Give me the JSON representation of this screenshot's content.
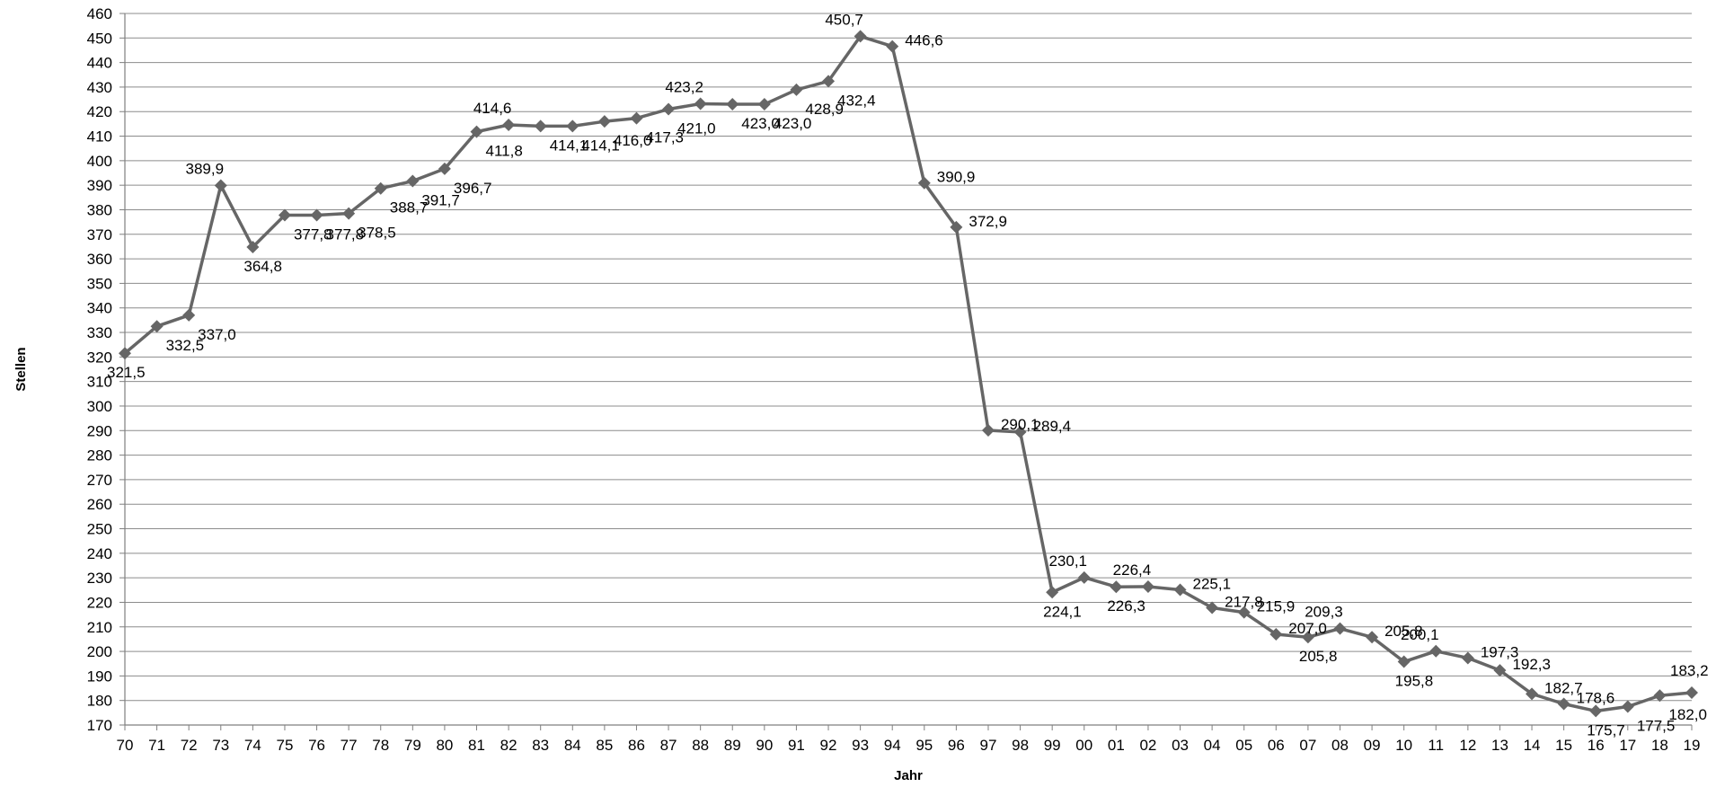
{
  "chart_data": {
    "type": "line",
    "title": "",
    "xlabel": "Jahr",
    "ylabel": "Stellen",
    "ylim": [
      170,
      460
    ],
    "ytick_step": 10,
    "grid": true,
    "legend": "none",
    "line_color": "#666666",
    "categories": [
      "70",
      "71",
      "72",
      "73",
      "74",
      "75",
      "76",
      "77",
      "78",
      "79",
      "80",
      "81",
      "82",
      "83",
      "84",
      "85",
      "86",
      "87",
      "88",
      "89",
      "90",
      "91",
      "92",
      "93",
      "94",
      "95",
      "96",
      "97",
      "98",
      "99",
      "00",
      "01",
      "02",
      "03",
      "04",
      "05",
      "06",
      "07",
      "08",
      "09",
      "10",
      "11",
      "12",
      "13",
      "14",
      "15",
      "16",
      "17",
      "18",
      "19"
    ],
    "values": [
      321.5,
      332.5,
      337.0,
      389.9,
      364.8,
      377.8,
      377.8,
      378.5,
      388.7,
      391.7,
      396.7,
      411.8,
      414.6,
      414.1,
      414.1,
      416.0,
      417.3,
      421.0,
      423.2,
      423.0,
      423.0,
      428.9,
      432.4,
      450.7,
      446.6,
      390.9,
      372.9,
      290.1,
      289.4,
      224.1,
      230.1,
      226.3,
      226.4,
      225.1,
      217.8,
      215.9,
      207.0,
      205.8,
      209.3,
      205.8,
      195.8,
      200.1,
      197.3,
      192.3,
      182.7,
      178.6,
      175.7,
      177.5,
      182.0,
      183.2
    ],
    "labels": [
      "321,5",
      "332,5",
      "337,0",
      "389,9",
      "364,8",
      "377,8",
      "377,8",
      "378,5",
      "388,7",
      "391,7",
      "396,7",
      "411,8",
      "414,6",
      "414,1",
      "414,1",
      "416,0",
      "417,3",
      "421,0",
      "423,2",
      "423,0",
      "423,0",
      "428,9",
      "432,4",
      "450,7",
      "446,6",
      "390,9",
      "372,9",
      "290,1",
      "289,4",
      "224,1",
      "230,1",
      "226,3",
      "226,4",
      "225,1",
      "217,8",
      "215,9",
      "207,0",
      "205,8",
      "209,3",
      "205,8",
      "195,8",
      "200,1",
      "197,3",
      "192,3",
      "182,7",
      "178,6",
      "175,7",
      "177,5",
      "182,0",
      "183,2"
    ]
  }
}
